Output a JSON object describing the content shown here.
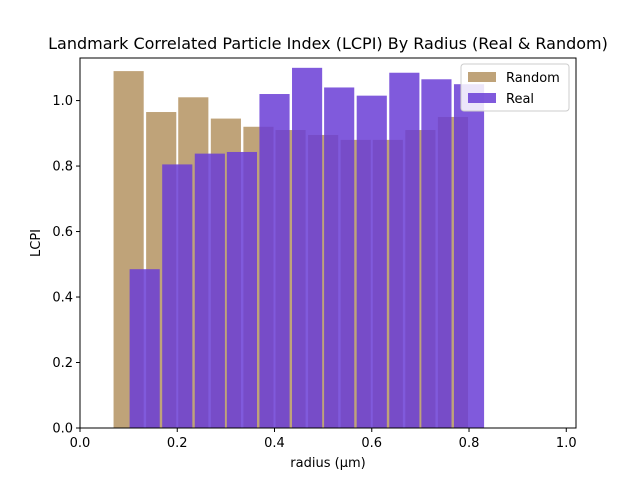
{
  "chart_data": {
    "type": "bar",
    "title": "Landmark Correlated Particle Index (LCPI) By Radius (Real & Random)",
    "xlabel": "radius (µm)",
    "ylabel": "LCPI",
    "xlim": [
      0.0,
      1.02
    ],
    "ylim": [
      0.0,
      1.13
    ],
    "xticks": [
      0.0,
      0.2,
      0.4,
      0.6,
      0.8,
      1.0
    ],
    "xtick_labels": [
      "0.0",
      "0.2",
      "0.4",
      "0.6",
      "0.8",
      "1.0"
    ],
    "yticks": [
      0.0,
      0.2,
      0.4,
      0.6,
      0.8,
      1.0
    ],
    "ytick_labels": [
      "0.0",
      "0.2",
      "0.4",
      "0.6",
      "0.8",
      "1.0"
    ],
    "bar_width": 0.062,
    "grid": false,
    "legend_position": "top-right",
    "series": [
      {
        "name": "Random",
        "color": "#b8996a",
        "opacity": 0.9,
        "x": [
          0.1,
          0.167,
          0.233,
          0.3,
          0.367,
          0.433,
          0.5,
          0.567,
          0.633,
          0.7,
          0.767
        ],
        "values": [
          1.09,
          0.965,
          1.01,
          0.945,
          0.92,
          0.91,
          0.895,
          0.88,
          0.88,
          0.91,
          0.95
        ]
      },
      {
        "name": "Real",
        "color": "#6a3dd6",
        "opacity": 0.85,
        "x": [
          0.133,
          0.2,
          0.267,
          0.333,
          0.4,
          0.467,
          0.533,
          0.6,
          0.667,
          0.733,
          0.8
        ],
        "values": [
          0.485,
          0.805,
          0.838,
          0.843,
          1.02,
          1.1,
          1.04,
          1.015,
          1.085,
          1.065,
          1.05
        ]
      }
    ]
  }
}
